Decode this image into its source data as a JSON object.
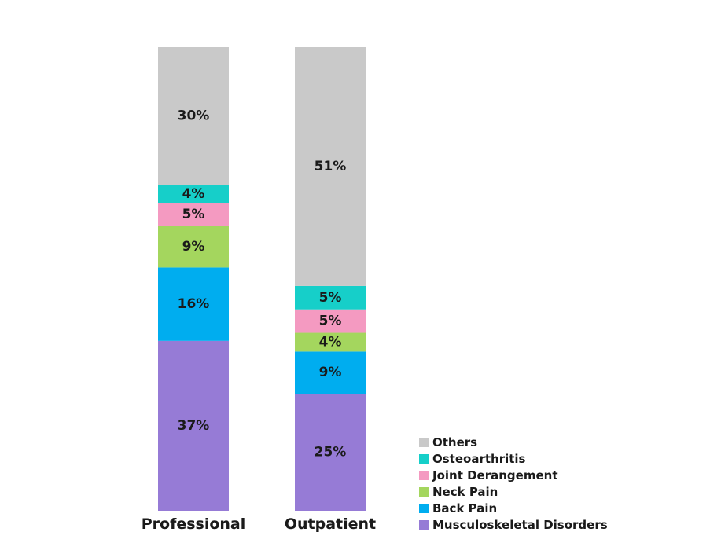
{
  "chart_data": {
    "type": "bar",
    "stacked": true,
    "categories": [
      "Professional",
      "Outpatient"
    ],
    "series": [
      {
        "name": "Musculoskeletal Disorders",
        "color": "#967bd6",
        "values": [
          37,
          25
        ],
        "labels": [
          "37%",
          "25%"
        ]
      },
      {
        "name": "Back Pain",
        "color": "#00adef",
        "values": [
          16,
          9
        ],
        "labels": [
          "16%",
          "9%"
        ]
      },
      {
        "name": "Neck Pain",
        "color": "#a4d65e",
        "values": [
          9,
          4
        ],
        "labels": [
          "9%",
          "4%"
        ]
      },
      {
        "name": "Joint Derangement",
        "color": "#f49ac1",
        "values": [
          5,
          5
        ],
        "labels": [
          "5%",
          "5%"
        ]
      },
      {
        "name": "Osteoarthritis",
        "color": "#16cfc9",
        "values": [
          4,
          5
        ],
        "labels": [
          "4%",
          "5%"
        ]
      },
      {
        "name": "Others",
        "color": "#c9c9c9",
        "values": [
          30,
          51
        ],
        "labels": [
          "30%",
          "51%"
        ]
      }
    ],
    "legend_order": [
      "Others",
      "Osteoarthritis",
      "Joint Derangement",
      "Neck Pain",
      "Back Pain",
      "Musculoskeletal Disorders"
    ],
    "legend_position": "bottom-right",
    "ylim": [
      0,
      100
    ],
    "grid": false,
    "title": "",
    "xlabel": "",
    "ylabel": ""
  }
}
